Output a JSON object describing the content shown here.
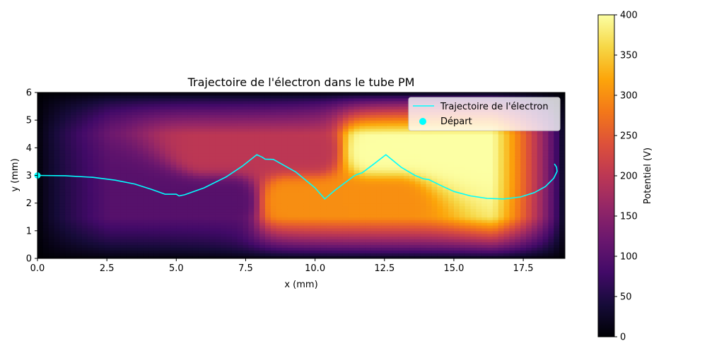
{
  "chart_data": {
    "type": "heatmap",
    "title": "Trajectoire de l'électron dans le tube PM",
    "xlabel": "x (mm)",
    "ylabel": "y (mm)",
    "xlim": [
      0,
      19
    ],
    "ylim": [
      0,
      6
    ],
    "xticks": [
      "0.0",
      "2.5",
      "5.0",
      "7.5",
      "10.0",
      "12.5",
      "15.0",
      "17.5"
    ],
    "yticks": [
      "0",
      "1",
      "2",
      "3",
      "4",
      "5",
      "6"
    ],
    "colormap": "inferno",
    "colorbar": {
      "label": "Potentiel (V)",
      "range": [
        0,
        400
      ],
      "ticks": [
        "0",
        "50",
        "100",
        "150",
        "200",
        "250",
        "300",
        "350",
        "400"
      ]
    },
    "electrodes": [
      {
        "x": [
          3,
          7
        ],
        "y": 2.1,
        "potential": 100
      },
      {
        "x": [
          6,
          10
        ],
        "y": 3.9,
        "potential": 200
      },
      {
        "x": [
          9,
          13
        ],
        "y": 2.1,
        "potential": 300
      },
      {
        "x": [
          12,
          16
        ],
        "y": 3.9,
        "potential": 400
      }
    ],
    "series": [
      {
        "name": "Trajectoire de l'électron",
        "color": "#00ffff",
        "x": [
          0,
          1.0,
          2.0,
          2.8,
          3.5,
          4.1,
          4.6,
          5.0,
          5.1,
          5.3,
          6.0,
          6.8,
          7.4,
          7.9,
          8.1,
          8.2,
          8.5,
          9.3,
          10.0,
          10.35,
          10.7,
          11.4,
          11.5,
          11.7,
          12.1,
          12.55,
          13.1,
          13.6,
          13.9,
          14.1,
          14.5,
          15.0,
          15.6,
          16.2,
          16.8,
          17.4,
          17.9,
          18.3,
          18.6,
          18.72,
          18.7,
          18.62
        ],
        "y": [
          3.0,
          2.99,
          2.93,
          2.83,
          2.69,
          2.5,
          2.32,
          2.32,
          2.26,
          2.3,
          2.55,
          2.95,
          3.35,
          3.75,
          3.66,
          3.59,
          3.58,
          3.13,
          2.55,
          2.15,
          2.45,
          2.98,
          3.03,
          3.1,
          3.4,
          3.75,
          3.3,
          3.0,
          2.88,
          2.85,
          2.65,
          2.42,
          2.26,
          2.17,
          2.15,
          2.22,
          2.38,
          2.6,
          2.9,
          3.15,
          3.3,
          3.42
        ]
      },
      {
        "name": "Départ",
        "type": "scatter",
        "color": "#00ffff",
        "x": [
          0
        ],
        "y": [
          3
        ]
      }
    ],
    "legend": "top-right"
  }
}
